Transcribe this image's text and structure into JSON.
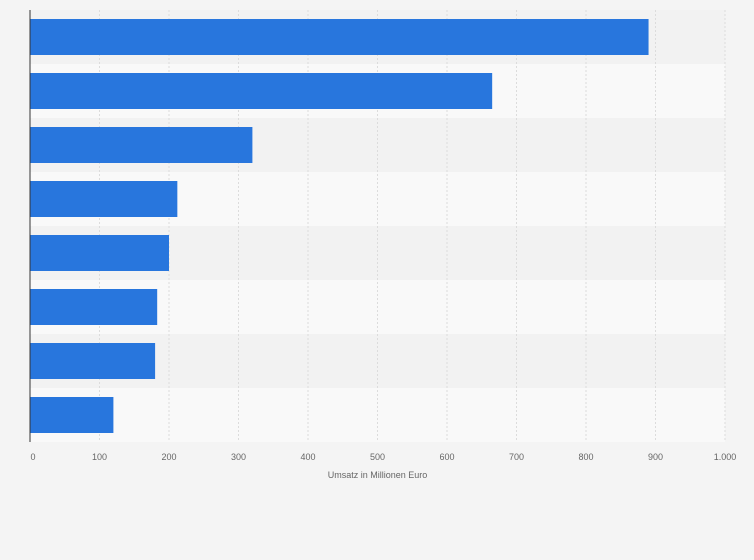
{
  "chart_data": {
    "type": "bar",
    "orientation": "horizontal",
    "categories": [
      "",
      "",
      "",
      "",
      "",
      "",
      "",
      ""
    ],
    "values": [
      890,
      665,
      320,
      212,
      200,
      183,
      180,
      120
    ],
    "xlabel": "Umsatz in Millionen Euro",
    "ylabel": "",
    "xlim": [
      0,
      1000
    ],
    "xticks": [
      0,
      100,
      200,
      300,
      400,
      500,
      600,
      700,
      800,
      900,
      1000
    ],
    "xtick_labels": [
      "0",
      "100",
      "200",
      "300",
      "400",
      "500",
      "600",
      "700",
      "800",
      "900",
      "1.000"
    ],
    "grid": "vertical dashed",
    "colors": {
      "bar": "#2876dd",
      "background": "#f4f4f4",
      "band_light": "#f9f9f9",
      "band_dark": "#f2f2f2",
      "grid": "#dcdcdc",
      "axis": "#333333"
    }
  }
}
